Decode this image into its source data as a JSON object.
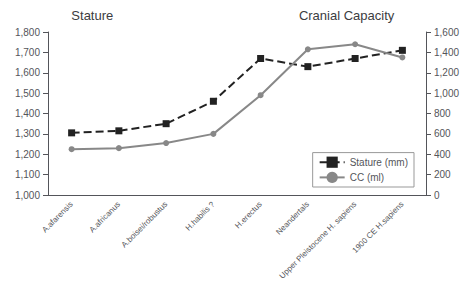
{
  "chart_data": {
    "type": "line",
    "annotations": [
      "Stature",
      "Cranial Capacity"
    ],
    "categories": [
      "A.afarensis",
      "A.africanus",
      "A.boisei/robustus",
      "H.habilis ?",
      "H.erectus",
      "Neandertals",
      "Upper Pleistocene H. sapiens",
      "1900 CE H.sapiens"
    ],
    "series": [
      {
        "name": "Stature (mm)",
        "color": "#222222",
        "marker": "square",
        "line_style": "dashed",
        "values": [
          1305,
          1315,
          1350,
          1460,
          1670,
          1630,
          1670,
          1710
        ]
      },
      {
        "name": "CC (ml)",
        "color": "#888888",
        "marker": "circle",
        "line_style": "solid",
        "axis": "y2",
        "values": [
          450,
          460,
          510,
          600,
          980,
          1430,
          1480,
          1350
        ]
      }
    ],
    "ylim": [
      1000,
      1800
    ],
    "yticks": [
      1000,
      1100,
      1200,
      1300,
      1400,
      1500,
      1600,
      1700,
      1800
    ],
    "y2lim": [
      0,
      1600
    ],
    "y2ticks": [
      0,
      200,
      400,
      600,
      800,
      1000,
      1200,
      1400,
      1600
    ],
    "grid": false,
    "legend": "lower right"
  }
}
